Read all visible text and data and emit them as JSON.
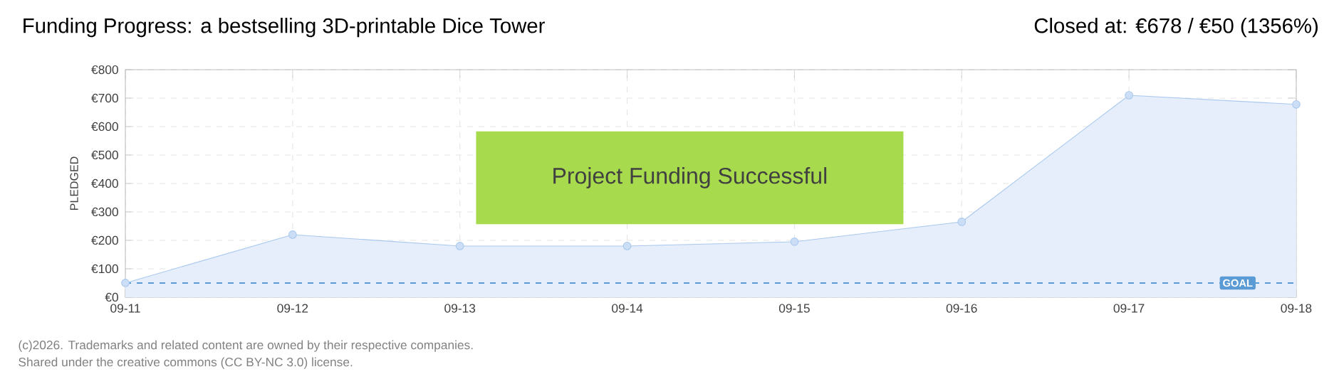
{
  "chart_data": {
    "type": "area",
    "title": "Funding Progress: a bestselling 3D-printable Dice Tower",
    "subtitle": "Closed at:  €678 /  €50 (1356%)",
    "ylabel": "PLEDGED",
    "categories": [
      "09-11",
      "09-12",
      "09-13",
      "09-14",
      "09-15",
      "09-16",
      "09-17",
      "09-18"
    ],
    "series": [
      {
        "color": "#a9c8ee",
        "values": [
          50,
          220,
          180,
          180,
          195,
          265,
          710,
          678
        ]
      }
    ],
    "ylim": [
      0,
      800
    ],
    "yticks": [
      {
        "value": 0,
        "label": "€0"
      },
      {
        "value": 100,
        "label": "€100"
      },
      {
        "value": 200,
        "label": "€200"
      },
      {
        "value": 300,
        "label": "€300"
      },
      {
        "value": 400,
        "label": "€400"
      },
      {
        "value": 500,
        "label": "€500"
      },
      {
        "value": 600,
        "label": "€600"
      },
      {
        "value": 700,
        "label": "€700"
      },
      {
        "value": 800,
        "label": "€800"
      }
    ],
    "ref_lines": [
      {
        "axis": "y",
        "value": 50,
        "label": "GOAL",
        "color": "#5b9bd5",
        "line_style": "dashed"
      }
    ],
    "annotations": [
      "Project Funding Successful",
      "(c)2026. Trademarks and related content are owned by their respective companies.",
      "Shared under the creative commons (CC BY-NC 3.0) license."
    ],
    "grid": true,
    "marker": "circle"
  }
}
